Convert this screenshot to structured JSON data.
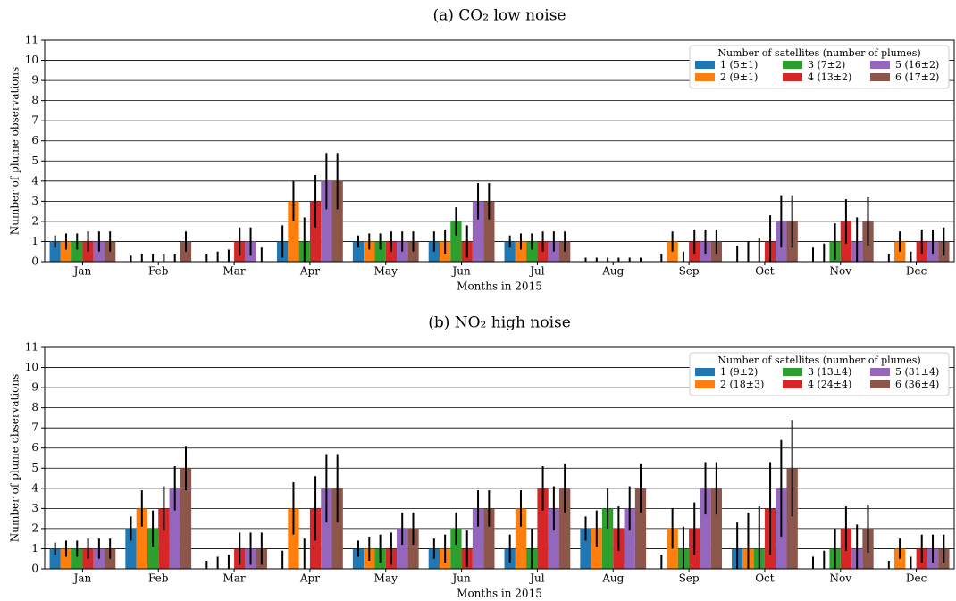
{
  "chart_data": [
    {
      "type": "bar",
      "title": "(a) CO₂ low noise",
      "xlabel": "Months in 2015",
      "ylabel": "Number of plume observations",
      "categories": [
        "Jan",
        "Feb",
        "Mar",
        "Apr",
        "May",
        "Jun",
        "Jul",
        "Aug",
        "Sep",
        "Oct",
        "Nov",
        "Dec"
      ],
      "ylim": [
        0,
        11
      ],
      "yticks": [
        0,
        1,
        2,
        3,
        4,
        5,
        6,
        7,
        8,
        9,
        10,
        11
      ],
      "grid": true,
      "legend": "upper right",
      "legend_title": "Number of satellites (number of plumes)",
      "series": [
        {
          "name": "1 (5±1)",
          "color": "#1f77b4",
          "values": [
            1,
            0,
            0,
            1,
            1,
            1,
            1,
            0,
            0,
            0,
            0,
            0
          ],
          "errors": [
            0.3,
            0.3,
            0.4,
            0.8,
            0.3,
            0.5,
            0.3,
            0.2,
            0.4,
            0.8,
            0.7,
            0.4
          ]
        },
        {
          "name": "2 (9±1)",
          "color": "#ff7f0e",
          "values": [
            1,
            0,
            0,
            3,
            1,
            1,
            1,
            0,
            1,
            0,
            0,
            1
          ],
          "errors": [
            0.4,
            0.4,
            0.5,
            1.0,
            0.4,
            0.6,
            0.4,
            0.2,
            0.5,
            1.0,
            0.9,
            0.5
          ]
        },
        {
          "name": "3 (7±2)",
          "color": "#2ca02c",
          "values": [
            1,
            0,
            0,
            1,
            1,
            2,
            1,
            0,
            0,
            0,
            1,
            0
          ],
          "errors": [
            0.4,
            0.4,
            0.6,
            1.2,
            0.4,
            0.7,
            0.4,
            0.2,
            0.5,
            1.2,
            0.9,
            0.5
          ]
        },
        {
          "name": "4 (13±2)",
          "color": "#d62728",
          "values": [
            1,
            0,
            1,
            3,
            1,
            1,
            1,
            0,
            1,
            1,
            2,
            1
          ],
          "errors": [
            0.5,
            0.4,
            0.7,
            1.3,
            0.5,
            0.8,
            0.5,
            0.2,
            0.6,
            1.3,
            1.1,
            0.6
          ]
        },
        {
          "name": "5 (16±2)",
          "color": "#9467bd",
          "values": [
            1,
            0,
            1,
            4,
            1,
            3,
            1,
            0,
            1,
            2,
            1,
            1
          ],
          "errors": [
            0.5,
            0.4,
            0.7,
            1.4,
            0.5,
            0.9,
            0.5,
            0.2,
            0.6,
            1.3,
            1.2,
            0.6
          ]
        },
        {
          "name": "6 (17±2)",
          "color": "#8c564b",
          "values": [
            1,
            1,
            0,
            4,
            1,
            3,
            1,
            0,
            1,
            2,
            2,
            1
          ],
          "errors": [
            0.5,
            0.5,
            0.7,
            1.4,
            0.5,
            0.9,
            0.5,
            0.2,
            0.6,
            1.3,
            1.2,
            0.7
          ]
        }
      ]
    },
    {
      "type": "bar",
      "title": "(b) NO₂ high noise",
      "xlabel": "Months in 2015",
      "ylabel": "Number of plume observations",
      "categories": [
        "Jan",
        "Feb",
        "Mar",
        "Apr",
        "May",
        "Jun",
        "Jul",
        "Aug",
        "Sep",
        "Oct",
        "Nov",
        "Dec"
      ],
      "ylim": [
        0,
        11
      ],
      "yticks": [
        0,
        1,
        2,
        3,
        4,
        5,
        6,
        7,
        8,
        9,
        10,
        11
      ],
      "grid": true,
      "legend": "upper right",
      "legend_title": "Number of satellites (number of plumes)",
      "series": [
        {
          "name": "1 (9±2)",
          "color": "#1f77b4",
          "values": [
            1,
            2,
            0,
            0,
            1,
            1,
            1,
            2,
            0,
            1,
            0,
            0
          ],
          "errors": [
            0.3,
            0.6,
            0.4,
            0.9,
            0.4,
            0.5,
            0.7,
            0.6,
            0.7,
            1.3,
            0.6,
            0.4
          ]
        },
        {
          "name": "2 (18±3)",
          "color": "#ff7f0e",
          "values": [
            1,
            3,
            0,
            3,
            1,
            1,
            3,
            2,
            2,
            1,
            0,
            1
          ],
          "errors": [
            0.4,
            0.9,
            0.6,
            1.3,
            0.6,
            0.7,
            0.9,
            0.9,
            1.0,
            1.8,
            0.9,
            0.5
          ]
        },
        {
          "name": "3 (13±4)",
          "color": "#2ca02c",
          "values": [
            1,
            2,
            0,
            0,
            1,
            2,
            1,
            3,
            1,
            1,
            1,
            0
          ],
          "errors": [
            0.4,
            0.9,
            0.7,
            1.5,
            0.7,
            0.8,
            1.0,
            1.0,
            1.1,
            2.1,
            1.0,
            0.6
          ]
        },
        {
          "name": "4 (24±4)",
          "color": "#d62728",
          "values": [
            1,
            3,
            1,
            3,
            1,
            1,
            4,
            2,
            2,
            3,
            2,
            1
          ],
          "errors": [
            0.5,
            1.1,
            0.8,
            1.6,
            0.8,
            0.9,
            1.1,
            1.1,
            1.3,
            2.3,
            1.1,
            0.7
          ]
        },
        {
          "name": "5 (31±4)",
          "color": "#9467bd",
          "values": [
            1,
            4,
            1,
            4,
            2,
            3,
            3,
            3,
            4,
            4,
            1,
            1
          ],
          "errors": [
            0.5,
            1.1,
            0.8,
            1.7,
            0.8,
            0.9,
            1.1,
            1.1,
            1.3,
            2.4,
            1.2,
            0.7
          ]
        },
        {
          "name": "6 (36±4)",
          "color": "#8c564b",
          "values": [
            1,
            5,
            1,
            4,
            2,
            3,
            4,
            4,
            4,
            5,
            2,
            1
          ],
          "errors": [
            0.5,
            1.1,
            0.8,
            1.7,
            0.8,
            0.9,
            1.2,
            1.2,
            1.3,
            2.4,
            1.2,
            0.7
          ]
        }
      ]
    }
  ]
}
